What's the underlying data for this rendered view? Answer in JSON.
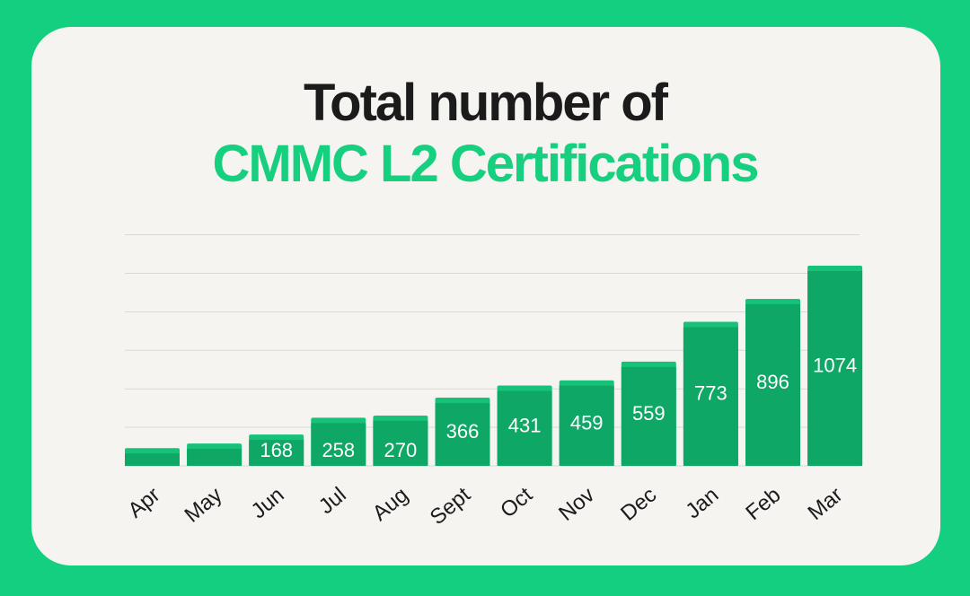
{
  "title": {
    "line1": "Total number of",
    "line2": "CMMC L2 Certifications"
  },
  "colors": {
    "background": "#14cf7f",
    "card": "#f5f4f1",
    "bar": "#0fa765",
    "bar_cap": "#15c278",
    "gridline": "#d8d8d8",
    "label": "#ffffff",
    "axis_text": "#1b1b1b"
  },
  "chart_data": {
    "type": "bar",
    "categories": [
      "Apr",
      "May",
      "Jun",
      "Jul",
      "Aug",
      "Sept",
      "Oct",
      "Nov",
      "Dec",
      "Jan",
      "Feb",
      "Mar"
    ],
    "values": [
      95,
      120,
      168,
      258,
      270,
      366,
      431,
      459,
      559,
      773,
      896,
      1074
    ],
    "data_labels": [
      "",
      "",
      "168",
      "258",
      "270",
      "366",
      "431",
      "459",
      "559",
      "773",
      "896",
      "1074"
    ],
    "ylim": [
      0,
      1200
    ],
    "grid": true,
    "legend": "none",
    "xlabel": "",
    "ylabel": ""
  }
}
